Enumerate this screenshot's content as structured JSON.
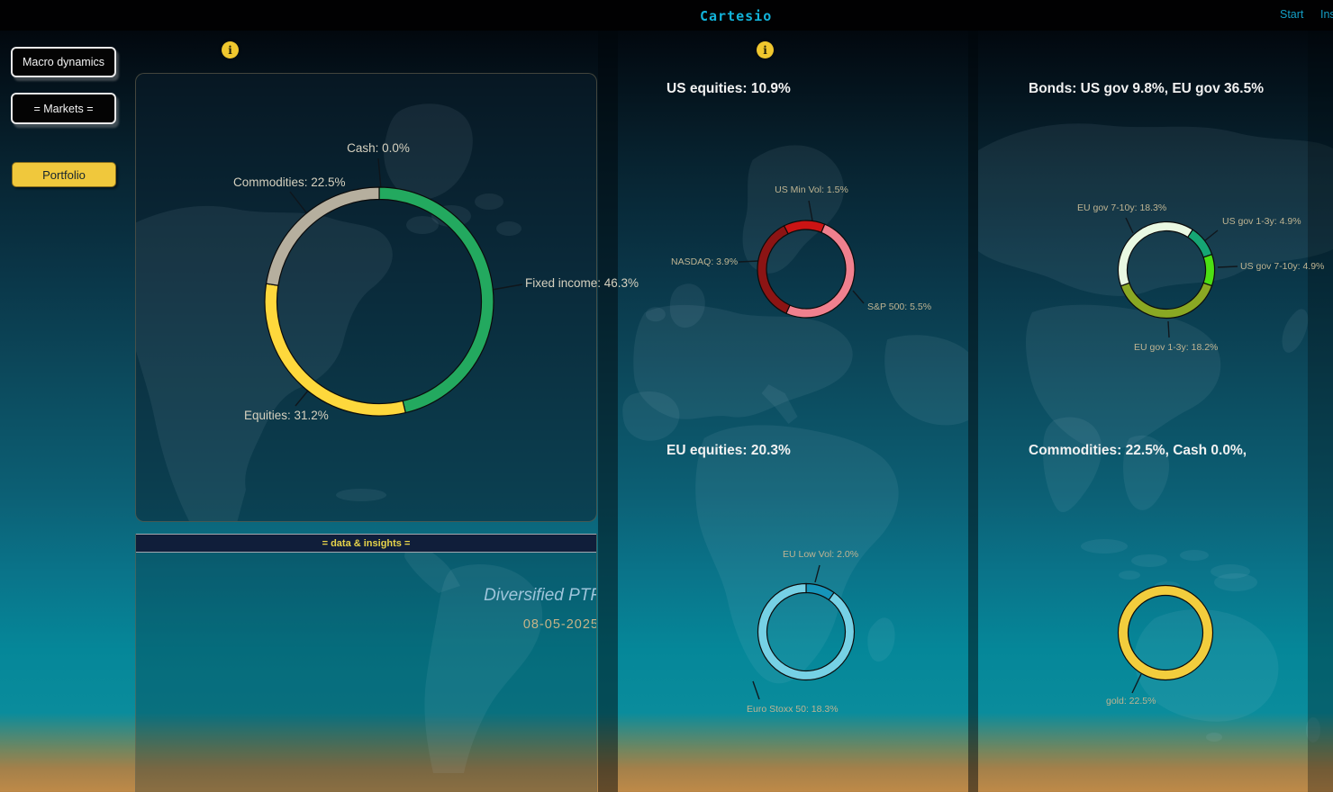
{
  "app": {
    "title": "Cartesio",
    "nav": [
      {
        "label": "Start"
      },
      {
        "label": "Ins"
      }
    ]
  },
  "sidebar": {
    "buttons": [
      {
        "id": "macro-dynamics",
        "label": "Macro dynamics",
        "active": false
      },
      {
        "id": "markets",
        "label": "= Markets =",
        "active": false
      },
      {
        "id": "portfolio",
        "label": "Portfolio",
        "active": true
      }
    ]
  },
  "icons": {
    "info": "i"
  },
  "insights": {
    "header": "= data & insights =",
    "portfolio_name": "Diversified PTF",
    "date": "08-05-2025"
  },
  "colors": {
    "accent_cyan": "#12b3da",
    "accent_yellow": "#f0c83c",
    "title_text": "#f1f1f1",
    "callout_text": "#bfb492"
  },
  "chart_data": [
    {
      "id": "allocation",
      "type": "donut",
      "title": "",
      "start_angle": 0,
      "segments": [
        {
          "label": "Fixed income",
          "value": 46.3,
          "color": "#23a95f"
        },
        {
          "label": "Equities",
          "value": 31.2,
          "color": "#fed83c"
        },
        {
          "label": "Commodities",
          "value": 22.5,
          "color": "#b6af9e"
        },
        {
          "label": "Cash",
          "value": 0.0,
          "color": "#b6af9e"
        }
      ],
      "callouts": [
        {
          "text": "Cash: 0.0%"
        },
        {
          "text": "Commodities: 22.5%"
        },
        {
          "text": "Fixed income: 46.3%"
        },
        {
          "text": "Equities: 31.2%"
        }
      ]
    },
    {
      "id": "us-equities",
      "type": "donut",
      "title": "US equities: 10.9%",
      "start_angle": -27,
      "segments": [
        {
          "label": "US Min Vol",
          "value": 1.5,
          "color": "#cb1414"
        },
        {
          "label": "S&P 500",
          "value": 5.5,
          "color": "#f0808e"
        },
        {
          "label": "NASDAQ",
          "value": 3.9,
          "color": "#8c1414"
        }
      ],
      "callouts": [
        {
          "text": "US Min Vol: 1.5%"
        },
        {
          "text": "NASDAQ: 3.9%"
        },
        {
          "text": "S&P 500: 5.5%"
        }
      ]
    },
    {
      "id": "bonds",
      "type": "donut",
      "title": "Bonds: US gov 9.8%, EU gov 36.5%",
      "start_angle": 33,
      "segments": [
        {
          "label": "US gov 1-3y",
          "value": 4.9,
          "color": "#16a574"
        },
        {
          "label": "US gov 7-10y",
          "value": 4.9,
          "color": "#4cdf13"
        },
        {
          "label": "EU gov 1-3y",
          "value": 18.2,
          "color": "#8aa823"
        },
        {
          "label": "EU gov 7-10y",
          "value": 18.3,
          "color": "#e9f8e2"
        }
      ],
      "callouts": [
        {
          "text": "EU gov 7-10y: 18.3%"
        },
        {
          "text": "US gov 1-3y: 4.9%"
        },
        {
          "text": "US gov 7-10y: 4.9%"
        },
        {
          "text": "EU gov 1-3y: 18.2%"
        }
      ]
    },
    {
      "id": "eu-equities",
      "type": "donut",
      "title": "EU equities: 20.3%",
      "start_angle": 0,
      "segments": [
        {
          "label": "EU Low Vol",
          "value": 2.0,
          "color": "#1695ba"
        },
        {
          "label": "Euro Stoxx 50",
          "value": 18.3,
          "color": "#76d1e5"
        }
      ],
      "callouts": [
        {
          "text": "EU Low Vol: 2.0%"
        },
        {
          "text": "Euro Stoxx 50: 18.3%"
        }
      ]
    },
    {
      "id": "commodities",
      "type": "donut",
      "title": "Commodities: 22.5%, Cash 0.0%,",
      "start_angle": 0,
      "segments": [
        {
          "label": "gold",
          "value": 22.5,
          "color": "#f2cd3d"
        }
      ],
      "callouts": [
        {
          "text": "gold: 22.5%"
        }
      ]
    }
  ]
}
